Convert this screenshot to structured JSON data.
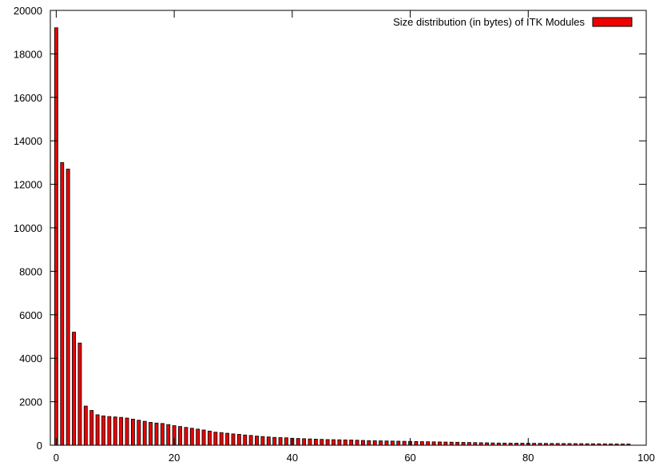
{
  "chart_data": {
    "type": "bar",
    "title": "",
    "xlabel": "",
    "ylabel": "",
    "xlim": [
      -1,
      100
    ],
    "ylim": [
      0,
      20000
    ],
    "x_ticks": [
      0,
      20,
      40,
      60,
      80,
      100
    ],
    "y_ticks": [
      0,
      2000,
      4000,
      6000,
      8000,
      10000,
      12000,
      14000,
      16000,
      18000,
      20000
    ],
    "grid": false,
    "legend_position": "top-right",
    "bar_color": "#ee0000",
    "bar_edge_color": "#000000",
    "series": [
      {
        "name": "Size distribution (in bytes) of ITK Modules",
        "x": [
          0,
          1,
          2,
          3,
          4,
          5,
          6,
          7,
          8,
          9,
          10,
          11,
          12,
          13,
          14,
          15,
          16,
          17,
          18,
          19,
          20,
          21,
          22,
          23,
          24,
          25,
          26,
          27,
          28,
          29,
          30,
          31,
          32,
          33,
          34,
          35,
          36,
          37,
          38,
          39,
          40,
          41,
          42,
          43,
          44,
          45,
          46,
          47,
          48,
          49,
          50,
          51,
          52,
          53,
          54,
          55,
          56,
          57,
          58,
          59,
          60,
          61,
          62,
          63,
          64,
          65,
          66,
          67,
          68,
          69,
          70,
          71,
          72,
          73,
          74,
          75,
          76,
          77,
          78,
          79,
          80,
          81,
          82,
          83,
          84,
          85,
          86,
          87,
          88,
          89,
          90,
          91,
          92,
          93,
          94,
          95,
          96,
          97
        ],
        "values": [
          19200,
          13000,
          12700,
          5200,
          4700,
          1800,
          1600,
          1400,
          1350,
          1320,
          1300,
          1280,
          1250,
          1200,
          1150,
          1100,
          1050,
          1020,
          1000,
          950,
          900,
          860,
          820,
          780,
          740,
          700,
          650,
          600,
          580,
          550,
          520,
          500,
          470,
          450,
          420,
          400,
          380,
          360,
          350,
          340,
          320,
          310,
          300,
          290,
          280,
          270,
          260,
          255,
          250,
          245,
          240,
          230,
          220,
          210,
          205,
          200,
          195,
          190,
          185,
          180,
          175,
          170,
          165,
          160,
          155,
          150,
          145,
          140,
          135,
          130,
          125,
          120,
          115,
          110,
          105,
          100,
          98,
          96,
          94,
          92,
          90,
          88,
          86,
          84,
          82,
          80,
          78,
          76,
          74,
          72,
          70,
          68,
          66,
          64,
          62,
          60,
          58,
          56
        ]
      }
    ]
  }
}
